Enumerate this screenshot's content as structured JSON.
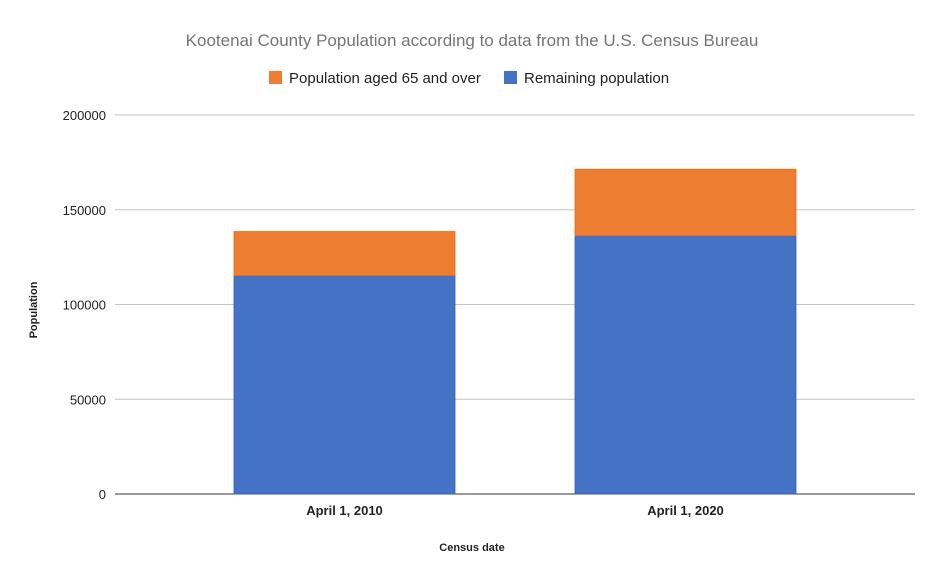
{
  "chart_data": {
    "type": "bar",
    "stacked": true,
    "title": "Kootenai County Population according to data from the U.S. Census Bureau",
    "xlabel": "Census date",
    "ylabel": "Population",
    "categories": [
      "April 1, 2010",
      "April 1, 2020"
    ],
    "series": [
      {
        "name": "Remaining population",
        "values": [
          115200,
          136300
        ],
        "color": "#4472c4"
      },
      {
        "name": "Population aged 65 and over",
        "values": [
          23294,
          35062
        ],
        "color": "#ed7d31"
      }
    ],
    "legend_order": [
      1,
      0
    ],
    "legend_position": "top",
    "ylim": [
      0,
      200000
    ],
    "yticks": [
      "0",
      "50000",
      "100000",
      "150000",
      "200000"
    ],
    "grid": true
  }
}
